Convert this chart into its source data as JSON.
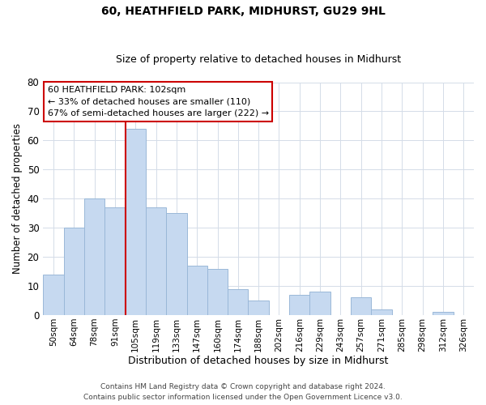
{
  "title": "60, HEATHFIELD PARK, MIDHURST, GU29 9HL",
  "subtitle": "Size of property relative to detached houses in Midhurst",
  "xlabel": "Distribution of detached houses by size in Midhurst",
  "ylabel": "Number of detached properties",
  "bar_labels": [
    "50sqm",
    "64sqm",
    "78sqm",
    "91sqm",
    "105sqm",
    "119sqm",
    "133sqm",
    "147sqm",
    "160sqm",
    "174sqm",
    "188sqm",
    "202sqm",
    "216sqm",
    "229sqm",
    "243sqm",
    "257sqm",
    "271sqm",
    "285sqm",
    "298sqm",
    "312sqm",
    "326sqm"
  ],
  "bar_values": [
    14,
    30,
    40,
    37,
    64,
    37,
    35,
    17,
    16,
    9,
    5,
    0,
    7,
    8,
    0,
    6,
    2,
    0,
    0,
    1,
    0
  ],
  "bar_color": "#c6d9f0",
  "bar_edge_color": "#9ab8d8",
  "vline_color": "#cc0000",
  "vline_x_index": 4,
  "ylim": [
    0,
    80
  ],
  "yticks": [
    0,
    10,
    20,
    30,
    40,
    50,
    60,
    70,
    80
  ],
  "annotation_title": "60 HEATHFIELD PARK: 102sqm",
  "annotation_line1": "← 33% of detached houses are smaller (110)",
  "annotation_line2": "67% of semi-detached houses are larger (222) →",
  "annotation_box_color": "#ffffff",
  "annotation_box_edge": "#cc0000",
  "footer1": "Contains HM Land Registry data © Crown copyright and database right 2024.",
  "footer2": "Contains public sector information licensed under the Open Government Licence v3.0.",
  "background_color": "#ffffff",
  "grid_color": "#d4dce8",
  "title_fontsize": 10,
  "subtitle_fontsize": 9
}
